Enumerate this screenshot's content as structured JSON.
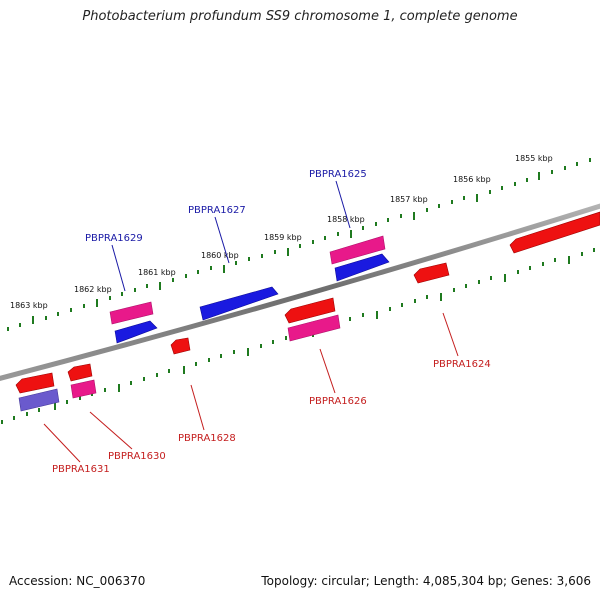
{
  "title": "Photobacterium profundum SS9 chromosome 1, complete genome",
  "footer": {
    "accession": "Accession: NC_006370",
    "summary": "Topology: circular; Length: 4,085,304 bp; Genes: 3,606"
  },
  "colors": {
    "backbone": "#7a7a7a",
    "tick": "#1f7a1f",
    "label_forward": "#1a1aa6",
    "label_reverse": "#c41e1e",
    "gene_red": "#ee1111",
    "gene_pink": "#e8198a",
    "gene_blue": "#1a1ae0",
    "gene_lavender": "#6a5acd"
  },
  "scale": {
    "unit": "kbp",
    "labels": [
      "1863 kbp",
      "1862 kbp",
      "1861 kbp",
      "1860 kbp",
      "1859 kbp",
      "1858 kbp",
      "1857 kbp",
      "1856 kbp",
      "1855 kbp"
    ]
  },
  "labels": {
    "forward": [
      "PBPRA1629",
      "PBPRA1627",
      "PBPRA1625"
    ],
    "reverse": [
      "PBPRA1631",
      "PBPRA1630",
      "PBPRA1628",
      "PBPRA1626",
      "PBPRA1624"
    ]
  }
}
